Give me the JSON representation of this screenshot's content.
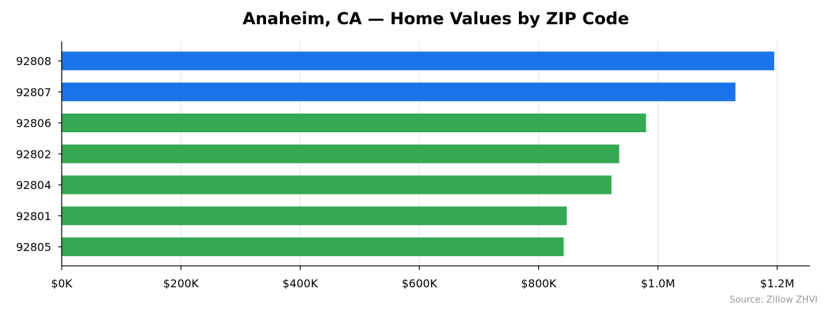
{
  "chart_data": {
    "type": "bar",
    "orientation": "horizontal",
    "title": "Anaheim, CA — Home Values by ZIP Code",
    "xlabel": "",
    "ylabel": "",
    "categories": [
      "92808",
      "92807",
      "92806",
      "92802",
      "92804",
      "92801",
      "92805"
    ],
    "values": [
      1195000,
      1130000,
      980000,
      935000,
      922000,
      847000,
      842000
    ],
    "bar_colors": [
      "#1a73e8",
      "#1a73e8",
      "#34a853",
      "#34a853",
      "#34a853",
      "#34a853",
      "#34a853"
    ],
    "xlim": [
      0,
      1255000
    ],
    "x_ticks": [
      0,
      200000,
      400000,
      600000,
      800000,
      1000000,
      1200000
    ],
    "x_tick_labels": [
      "$0K",
      "$200K",
      "$400K",
      "$600K",
      "$800K",
      "$1.0M",
      "$1.2M"
    ],
    "grid": "vertical",
    "legend": "none",
    "source": "Source: Zillow ZHVI"
  }
}
